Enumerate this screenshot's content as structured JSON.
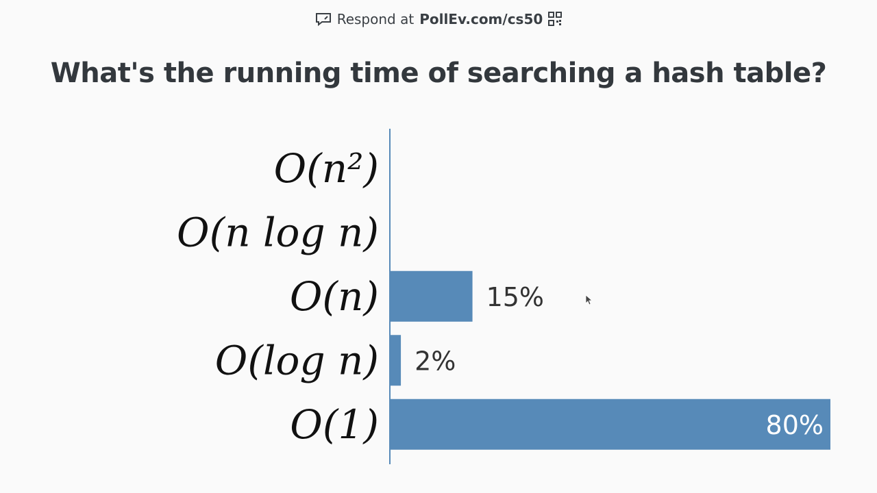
{
  "header": {
    "respond_prefix": "Respond at",
    "respond_url": "PollEv.com/cs50",
    "icons": [
      "chat-icon",
      "qr-code-icon"
    ]
  },
  "question": "What's the running time of searching a hash table?",
  "colors": {
    "bar": "#578ab8",
    "axis": "#578ab8",
    "text": "#33383d",
    "background": "#fafafa"
  },
  "chart_data": {
    "type": "bar",
    "orientation": "horizontal",
    "title": "What's the running time of searching a hash table?",
    "categories": [
      "O(n²)",
      "O(n log n)",
      "O(n)",
      "O(log n)",
      "O(1)"
    ],
    "values": [
      0,
      0,
      15,
      2,
      80
    ],
    "value_labels": [
      "",
      "",
      "15%",
      "2%",
      "80%"
    ],
    "unit": "%",
    "xlim": [
      0,
      80
    ],
    "grid": false,
    "legend": "none"
  }
}
